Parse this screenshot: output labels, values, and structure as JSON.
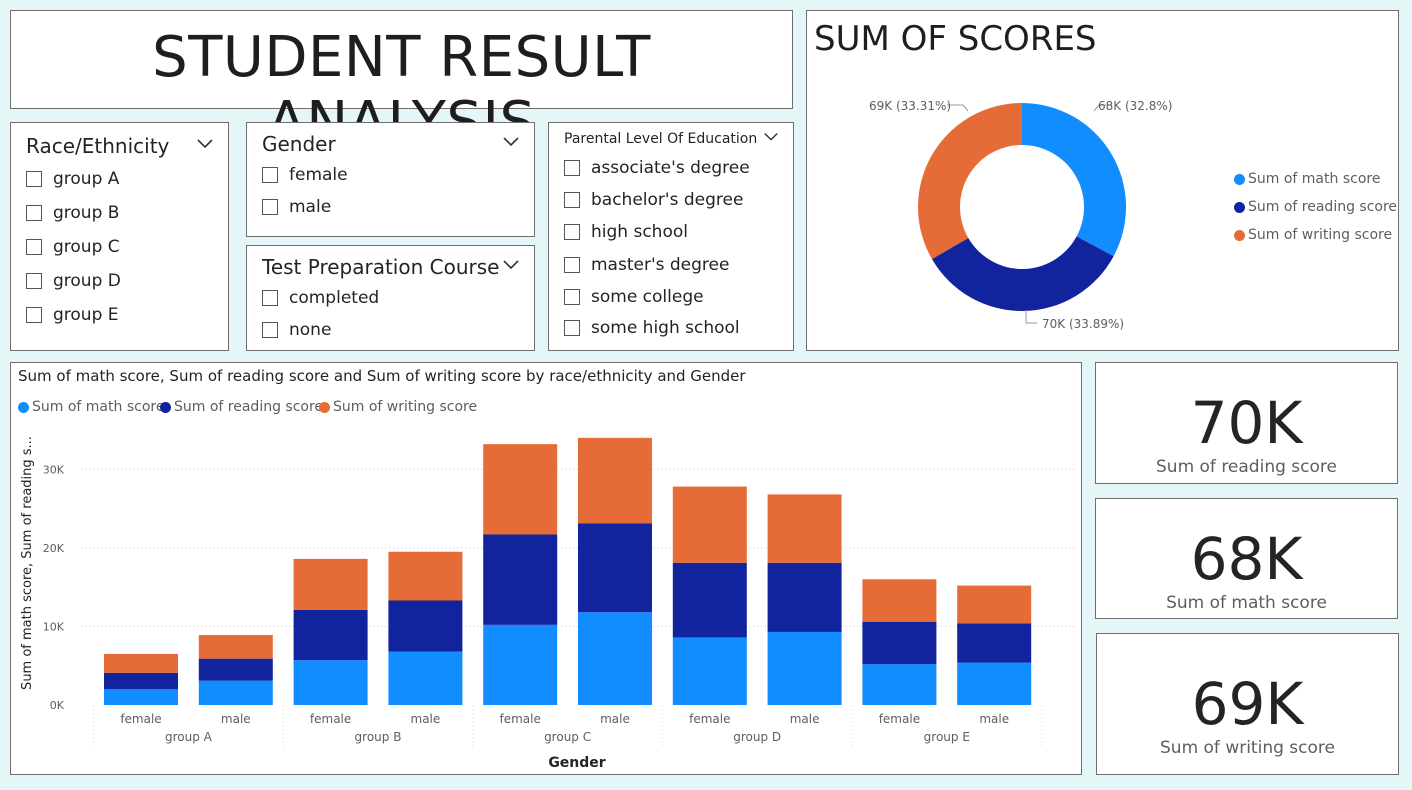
{
  "title": "STUDENT RESULT ANALYSIS",
  "colors": {
    "math": "#118dff",
    "reading": "#12239e",
    "writing": "#e66c37"
  },
  "slicers": {
    "race": {
      "label": "Race/Ethnicity",
      "items": [
        "group A",
        "group B",
        "group C",
        "group D",
        "group E"
      ]
    },
    "gender": {
      "label": "Gender",
      "items": [
        "female",
        "male"
      ]
    },
    "prep": {
      "label": "Test Preparation Course",
      "items": [
        "completed",
        "none"
      ]
    },
    "parent": {
      "label": "Parental Level Of Education",
      "items": [
        "associate's degree",
        "bachelor's degree",
        "high school",
        "master's degree",
        "some college",
        "some high school"
      ]
    }
  },
  "donut": {
    "title": "SUM OF SCORES",
    "slices": [
      {
        "name": "Sum of math score",
        "value": 68,
        "label": "68K (32.8%)",
        "color": "#118dff"
      },
      {
        "name": "Sum of reading score",
        "value": 70,
        "label": "70K (33.89%)",
        "color": "#12239e"
      },
      {
        "name": "Sum of writing score",
        "value": 69,
        "label": "69K (33.31%)",
        "color": "#e66c37"
      }
    ],
    "legend": [
      "Sum of math score",
      "Sum of reading score",
      "Sum of writing score"
    ]
  },
  "kpis": [
    {
      "value": "70K",
      "label": "Sum of reading score"
    },
    {
      "value": "68K",
      "label": "Sum of math score"
    },
    {
      "value": "69K",
      "label": "Sum of writing score"
    }
  ],
  "chart_data": {
    "type": "bar",
    "stacked": true,
    "title": "Sum of math score, Sum of reading score and Sum of writing score by race/ethnicity and Gender",
    "xlabel": "Gender",
    "ylabel": "Sum of math score, Sum of reading s...",
    "ylim": [
      0,
      35000
    ],
    "yticks": [
      {
        "v": 0,
        "t": "0K"
      },
      {
        "v": 10000,
        "t": "10K"
      },
      {
        "v": 20000,
        "t": "20K"
      },
      {
        "v": 30000,
        "t": "30K"
      }
    ],
    "groups": [
      "group A",
      "group B",
      "group C",
      "group D",
      "group E"
    ],
    "categories": [
      "female",
      "male",
      "female",
      "male",
      "female",
      "male",
      "female",
      "male",
      "female",
      "male"
    ],
    "series": [
      {
        "name": "Sum of math score",
        "color": "#118dff",
        "values": [
          2000,
          3100,
          5700,
          6800,
          10200,
          11800,
          8600,
          9300,
          5200,
          5400
        ]
      },
      {
        "name": "Sum of reading score",
        "color": "#12239e",
        "values": [
          2100,
          2800,
          6400,
          6500,
          11500,
          11300,
          9500,
          8800,
          5400,
          5000
        ]
      },
      {
        "name": "Sum of writing score",
        "color": "#e66c37",
        "values": [
          2400,
          3000,
          6500,
          6200,
          11500,
          10900,
          9700,
          8700,
          5400,
          4800
        ]
      }
    ],
    "legend": [
      "Sum of math score",
      "Sum of reading score",
      "Sum of writing score"
    ]
  }
}
